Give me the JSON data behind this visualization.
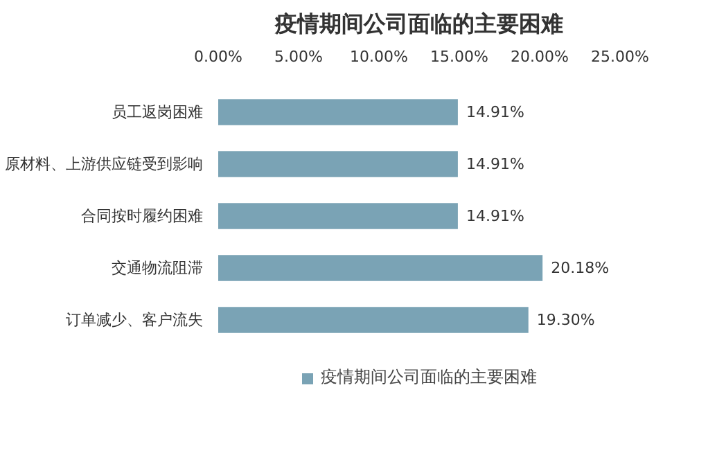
{
  "chart_data": {
    "type": "bar",
    "orientation": "horizontal",
    "title": "疫情期间公司面临的主要困难",
    "categories": [
      "员工返岗困难",
      "原材料、上游供应链受到影响",
      "合同按时履约困难",
      "交通物流阻滞",
      "订单减少、客户流失"
    ],
    "series": [
      {
        "name": "疫情期间公司面临的主要困难",
        "color": "#7aa3b5",
        "values": [
          14.91,
          14.91,
          14.91,
          20.18,
          19.3
        ],
        "value_labels": [
          "14.91%",
          "14.91%",
          "14.91%",
          "20.18%",
          "19.30%"
        ]
      }
    ],
    "xlim": [
      0,
      25
    ],
    "xticks": [
      {
        "value": 0,
        "label": "0.00%"
      },
      {
        "value": 5,
        "label": "5.00%"
      },
      {
        "value": 10,
        "label": "10.00%"
      },
      {
        "value": 15,
        "label": "15.00%"
      },
      {
        "value": 20,
        "label": "20.00%"
      },
      {
        "value": 25,
        "label": "25.00%"
      }
    ],
    "legend": "bottom"
  }
}
